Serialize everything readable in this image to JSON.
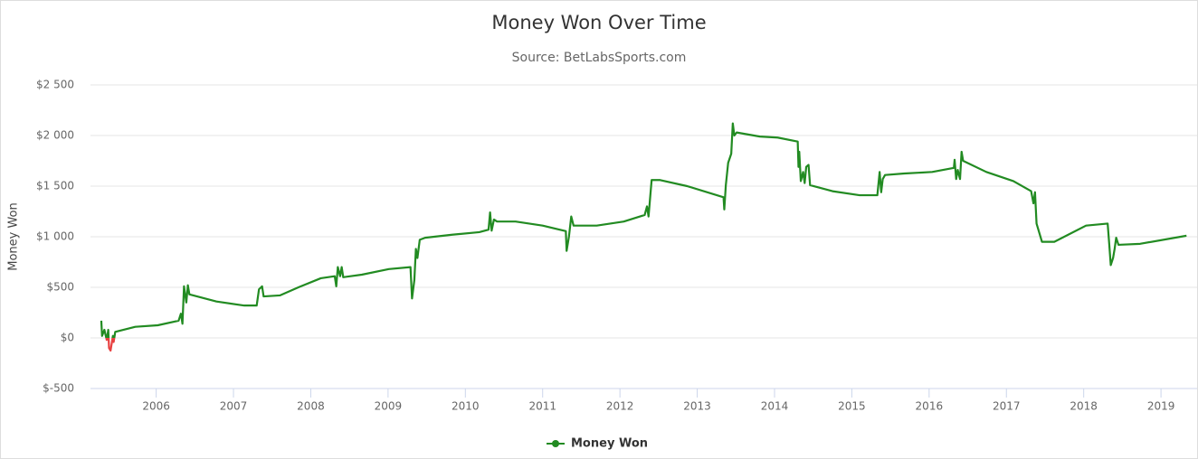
{
  "chart_data": {
    "type": "line",
    "title": "Money Won Over Time",
    "subtitle": "Source: BetLabsSports.com",
    "y_label": "Money Won",
    "x": [
      2005.29,
      2005.3,
      2005.33,
      2005.36,
      2005.38,
      2005.39,
      2005.41,
      2005.44,
      2005.45,
      2005.47,
      2005.73,
      2006.02,
      2006.29,
      2006.32,
      2006.34,
      2006.36,
      2006.39,
      2006.41,
      2006.43,
      2006.78,
      2007.14,
      2007.3,
      2007.33,
      2007.37,
      2007.39,
      2007.6,
      2007.84,
      2008.13,
      2008.31,
      2008.33,
      2008.35,
      2008.38,
      2008.4,
      2008.42,
      2008.66,
      2009.01,
      2009.29,
      2009.31,
      2009.34,
      2009.36,
      2009.38,
      2009.41,
      2009.48,
      2009.83,
      2010.18,
      2010.3,
      2010.32,
      2010.34,
      2010.37,
      2010.41,
      2010.65,
      2011.0,
      2011.3,
      2011.31,
      2011.34,
      2011.37,
      2011.4,
      2011.7,
      2012.05,
      2012.32,
      2012.35,
      2012.37,
      2012.41,
      2012.52,
      2012.87,
      2013.34,
      2013.35,
      2013.37,
      2013.4,
      2013.44,
      2013.46,
      2013.48,
      2013.51,
      2013.81,
      2014.04,
      2014.3,
      2014.31,
      2014.32,
      2014.34,
      2014.37,
      2014.39,
      2014.41,
      2014.44,
      2014.46,
      2014.75,
      2015.1,
      2015.33,
      2015.36,
      2015.38,
      2015.4,
      2015.43,
      2015.68,
      2016.04,
      2016.32,
      2016.33,
      2016.35,
      2016.37,
      2016.4,
      2016.42,
      2016.44,
      2016.74,
      2017.09,
      2017.32,
      2017.35,
      2017.37,
      2017.39,
      2017.46,
      2017.62,
      2018.03,
      2018.31,
      2018.33,
      2018.35,
      2018.38,
      2018.4,
      2018.42,
      2018.45,
      2018.73,
      2019.33
    ],
    "series": [
      {
        "name": "Money Won",
        "color": "#228b22",
        "negative_color": "#e84040",
        "values": [
          170,
          20,
          80,
          -20,
          80,
          -100,
          -125,
          20,
          -40,
          60,
          110,
          125,
          170,
          240,
          140,
          510,
          350,
          520,
          430,
          360,
          320,
          320,
          480,
          510,
          410,
          420,
          500,
          590,
          610,
          510,
          700,
          610,
          700,
          600,
          625,
          680,
          700,
          390,
          570,
          880,
          790,
          970,
          990,
          1020,
          1045,
          1070,
          1240,
          1060,
          1170,
          1150,
          1150,
          1110,
          1055,
          860,
          1000,
          1200,
          1110,
          1110,
          1150,
          1215,
          1300,
          1200,
          1560,
          1560,
          1500,
          1390,
          1270,
          1510,
          1730,
          1820,
          2120,
          2000,
          2030,
          1990,
          1980,
          1940,
          1690,
          1840,
          1550,
          1640,
          1530,
          1690,
          1710,
          1510,
          1450,
          1410,
          1410,
          1640,
          1440,
          1570,
          1610,
          1625,
          1640,
          1680,
          1760,
          1570,
          1660,
          1570,
          1840,
          1750,
          1640,
          1550,
          1450,
          1330,
          1440,
          1130,
          950,
          950,
          1110,
          1130,
          930,
          720,
          790,
          880,
          990,
          920,
          930,
          1010
        ]
      }
    ],
    "xlim": [
      2005.15,
      2019.35
    ],
    "xticks": [
      2006,
      2007,
      2008,
      2009,
      2010,
      2011,
      2012,
      2013,
      2014,
      2015,
      2016,
      2017,
      2018,
      2019
    ],
    "ylim": [
      -500,
      2500
    ],
    "yticks": [
      {
        "value": -500,
        "label": "$-500"
      },
      {
        "value": 0,
        "label": "$0"
      },
      {
        "value": 500,
        "label": "$500"
      },
      {
        "value": 1000,
        "label": "$1 000"
      },
      {
        "value": 1500,
        "label": "$1 500"
      },
      {
        "value": 2000,
        "label": "$2 000"
      },
      {
        "value": 2500,
        "label": "$2 500"
      }
    ],
    "grid": true,
    "legend": "bottom"
  }
}
